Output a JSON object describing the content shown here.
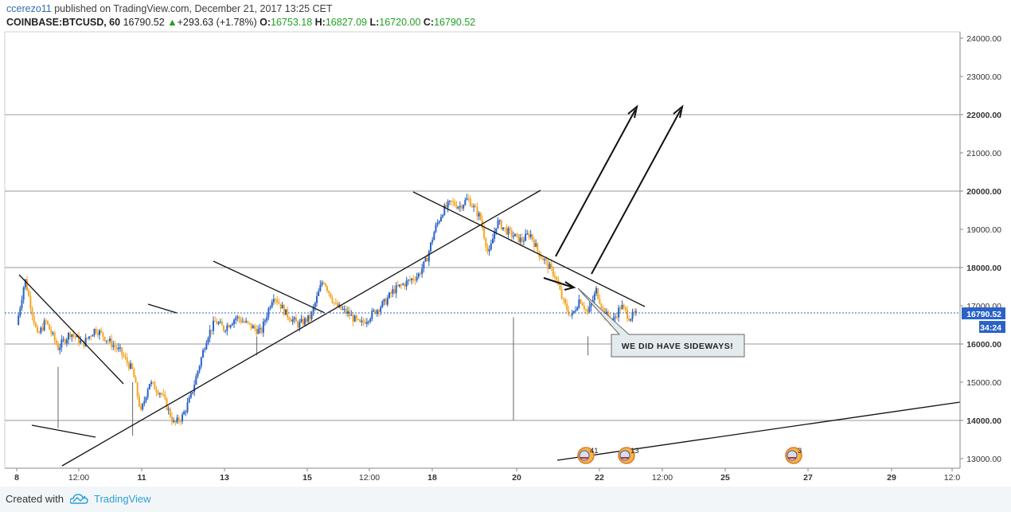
{
  "header": {
    "user": "ccerezo11",
    "published_text": "published on TradingView.com, December 21, 2017 13:25 CET",
    "symbol": "COINBASE:BTCUSD, 60",
    "last": "16790.52",
    "change": "+293.63 (+1.78%)",
    "open_label": "O:",
    "open": "16753.18",
    "high_label": "H:",
    "high": "16827.09",
    "low_label": "L:",
    "low": "16720.00",
    "close_label": "C:",
    "close": "16790.52"
  },
  "footer": {
    "created_with": "Created with",
    "brand": "TradingView"
  },
  "colors": {
    "candle_up": "#2962c8",
    "candle_down": "#f5a623",
    "line": "#000000",
    "grid": "#9a9a9a",
    "price_label": "#2962c8"
  },
  "chart_data": {
    "type": "candlestick",
    "ylim": [
      12800,
      24300
    ],
    "y_ticks": [
      "24000.00",
      "23000.00",
      "22000.00",
      "21000.00",
      "20000.00",
      "19000.00",
      "18000.00",
      "17000.00",
      "16000.00",
      "15000.00",
      "14000.00",
      "13000.00"
    ],
    "highlighted_levels": [
      "22000.00",
      "20000.00",
      "18000.00",
      "16000.00",
      "14000.00"
    ],
    "x_ticks": [
      "8",
      "12:00",
      "11",
      "13",
      "15",
      "12:00",
      "18",
      "20",
      "22",
      "12:00",
      "25",
      "27",
      "29",
      "12:0"
    ],
    "last_price_label": "16790.52",
    "countdown_label": "34:24",
    "annotation": "WE DID HAVE SIDEWAYS!",
    "event_badges": [
      "41",
      "13",
      "3"
    ],
    "price_path": [
      [
        8.0,
        16500
      ],
      [
        8.2,
        17700
      ],
      [
        8.5,
        16200
      ],
      [
        8.7,
        16600
      ],
      [
        9.0,
        15900
      ],
      [
        9.3,
        16300
      ],
      [
        9.6,
        16000
      ],
      [
        9.9,
        16400
      ],
      [
        10.2,
        16100
      ],
      [
        10.5,
        15800
      ],
      [
        10.8,
        15300
      ],
      [
        11.0,
        14200
      ],
      [
        11.2,
        15000
      ],
      [
        11.5,
        14700
      ],
      [
        11.8,
        13900
      ],
      [
        12.0,
        14100
      ],
      [
        12.2,
        14600
      ],
      [
        12.4,
        15400
      ],
      [
        12.6,
        16200
      ],
      [
        12.8,
        16600
      ],
      [
        13.0,
        16400
      ],
      [
        13.3,
        16700
      ],
      [
        13.6,
        16500
      ],
      [
        13.9,
        16300
      ],
      [
        14.2,
        17300
      ],
      [
        14.5,
        16800
      ],
      [
        14.8,
        16500
      ],
      [
        15.1,
        16700
      ],
      [
        15.4,
        17700
      ],
      [
        15.7,
        17000
      ],
      [
        16.0,
        16800
      ],
      [
        16.3,
        16500
      ],
      [
        16.6,
        16800
      ],
      [
        16.9,
        17100
      ],
      [
        17.1,
        17400
      ],
      [
        17.4,
        17600
      ],
      [
        17.7,
        17800
      ],
      [
        17.9,
        18200
      ],
      [
        18.1,
        19000
      ],
      [
        18.3,
        19500
      ],
      [
        18.5,
        19700
      ],
      [
        18.7,
        19600
      ],
      [
        18.9,
        19800
      ],
      [
        19.2,
        19300
      ],
      [
        19.4,
        18300
      ],
      [
        19.6,
        19200
      ],
      [
        19.9,
        18900
      ],
      [
        20.2,
        18700
      ],
      [
        20.4,
        18900
      ],
      [
        20.6,
        18400
      ],
      [
        20.8,
        18100
      ],
      [
        21.0,
        17800
      ],
      [
        21.2,
        17100
      ],
      [
        21.4,
        16700
      ],
      [
        21.6,
        17200
      ],
      [
        21.8,
        16800
      ],
      [
        22.0,
        17400
      ],
      [
        22.2,
        16800
      ],
      [
        22.4,
        16600
      ],
      [
        22.6,
        17000
      ],
      [
        22.8,
        16700
      ],
      [
        23.0,
        16790
      ]
    ]
  }
}
